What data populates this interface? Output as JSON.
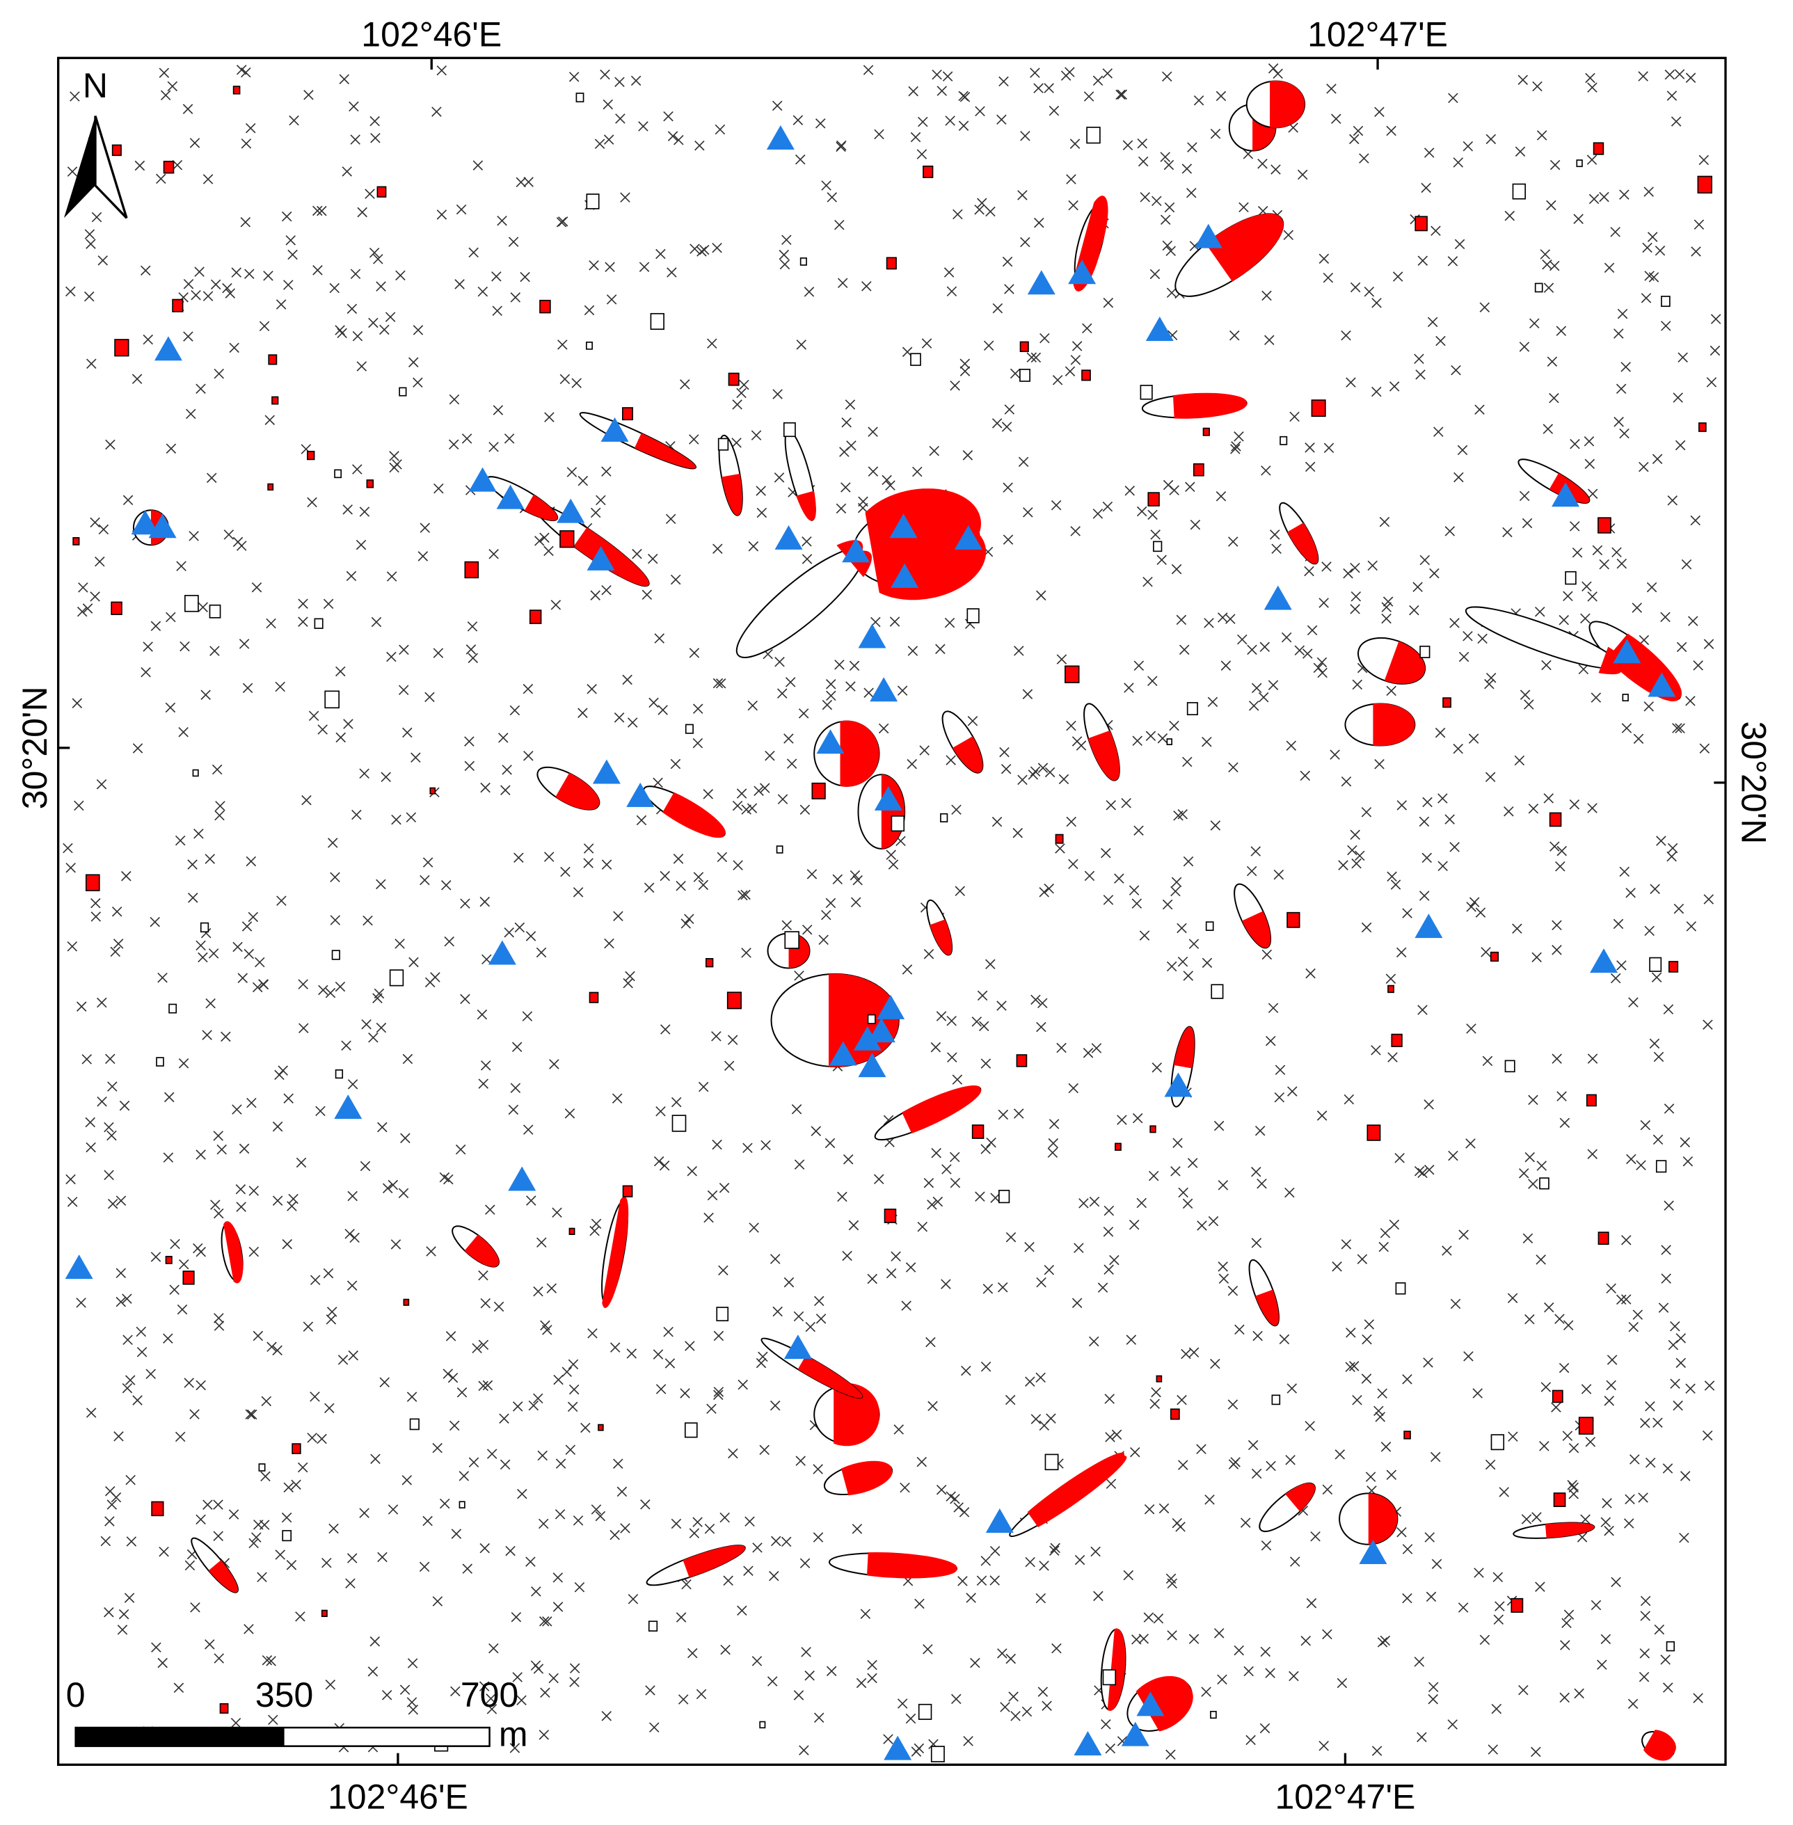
{
  "map": {
    "top_labels": [
      "102°46'E",
      "102°47'E"
    ],
    "bottom_labels": [
      "102°46'E",
      "102°47'E"
    ],
    "left_label": "30°20'N",
    "right_label": "30°20'N",
    "north_label": "N",
    "scale_labels": [
      "0",
      "350",
      "700"
    ],
    "scale_unit": "m"
  }
}
